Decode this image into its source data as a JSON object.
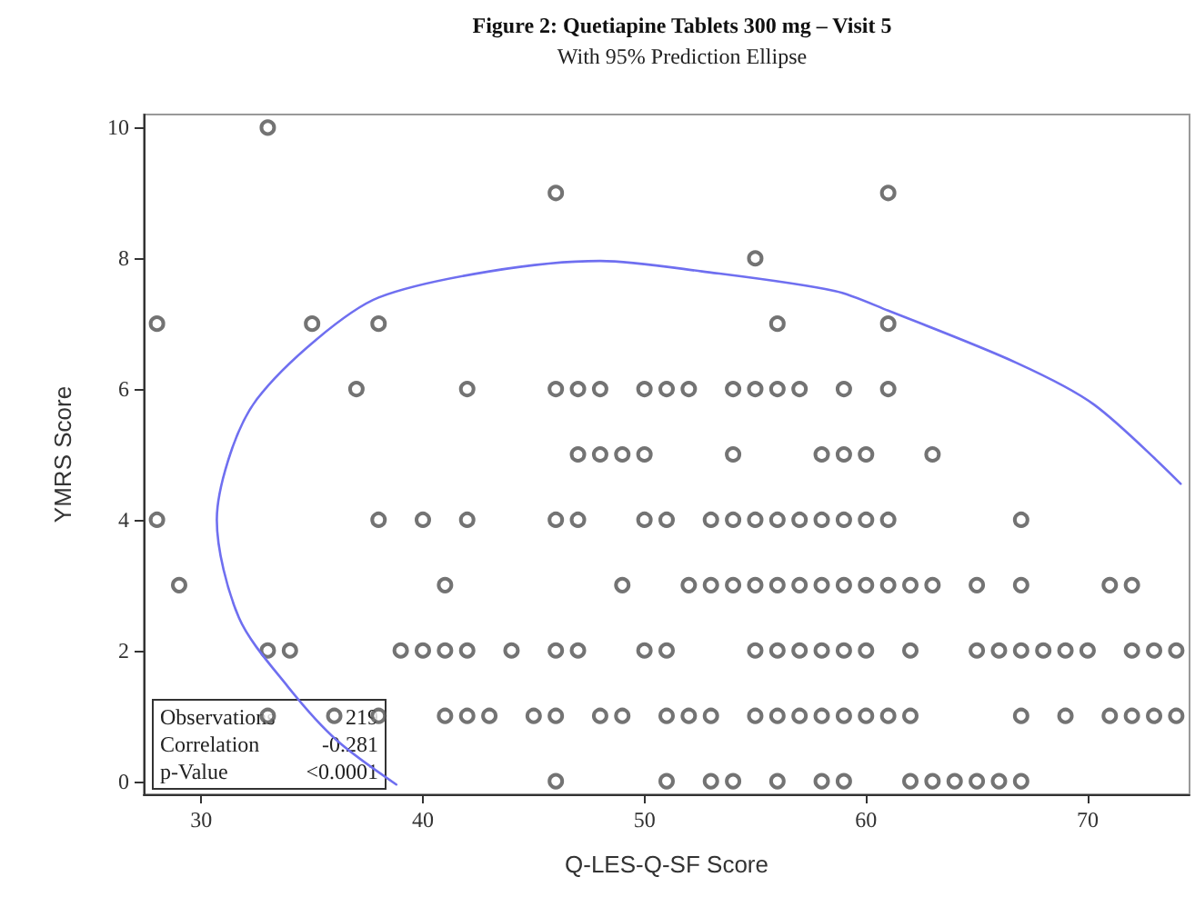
{
  "chart_data": {
    "type": "scatter",
    "title": "Figure 2: Quetiapine Tablets 300 mg – Visit 5",
    "subtitle": "With 95% Prediction Ellipse",
    "xlabel": "Q-LES-Q-SF Score",
    "ylabel": "YMRS Score",
    "xlim": [
      27.4,
      74.6
    ],
    "ylim": [
      -0.2,
      10.2
    ],
    "xticks": [
      30,
      40,
      50,
      60,
      70
    ],
    "yticks": [
      0,
      2,
      4,
      6,
      8,
      10
    ],
    "grid": false,
    "marker": "circle",
    "annotations": [
      "Observations",
      "219",
      "Correlation",
      "-0.281",
      "p-Value",
      "<0.0001"
    ],
    "series": [
      {
        "type": "scatter",
        "color": "#505050",
        "x": [
          33,
          46,
          61,
          55,
          28,
          35,
          38,
          56,
          61,
          37,
          42,
          46,
          47,
          48,
          50,
          51,
          52,
          54,
          55,
          56,
          57,
          59,
          61,
          47,
          48,
          49,
          50,
          54,
          58,
          59,
          60,
          63,
          28,
          38,
          40,
          42,
          46,
          47,
          50,
          51,
          53,
          54,
          55,
          56,
          57,
          58,
          59,
          60,
          61,
          67,
          29,
          41,
          49,
          52,
          53,
          54,
          55,
          56,
          57,
          58,
          59,
          60,
          61,
          62,
          63,
          65,
          67,
          71,
          72,
          33,
          34,
          39,
          40,
          41,
          42,
          44,
          46,
          47,
          50,
          51,
          55,
          56,
          57,
          58,
          59,
          60,
          62,
          65,
          66,
          67,
          68,
          69,
          70,
          72,
          73,
          74,
          33,
          36,
          38,
          41,
          42,
          43,
          45,
          46,
          48,
          49,
          51,
          52,
          53,
          55,
          56,
          57,
          58,
          59,
          60,
          61,
          62,
          67,
          69,
          71,
          72,
          73,
          74,
          46,
          51,
          53,
          54,
          56,
          58,
          59,
          62,
          63,
          64,
          65,
          66,
          67
        ],
        "values": [
          10,
          9,
          9,
          8,
          7,
          7,
          7,
          7,
          7,
          6,
          6,
          6,
          6,
          6,
          6,
          6,
          6,
          6,
          6,
          6,
          6,
          6,
          6,
          5,
          5,
          5,
          5,
          5,
          5,
          5,
          5,
          5,
          4,
          4,
          4,
          4,
          4,
          4,
          4,
          4,
          4,
          4,
          4,
          4,
          4,
          4,
          4,
          4,
          4,
          4,
          3,
          3,
          3,
          3,
          3,
          3,
          3,
          3,
          3,
          3,
          3,
          3,
          3,
          3,
          3,
          3,
          3,
          3,
          3,
          2,
          2,
          2,
          2,
          2,
          2,
          2,
          2,
          2,
          2,
          2,
          2,
          2,
          2,
          2,
          2,
          2,
          2,
          2,
          2,
          2,
          2,
          2,
          2,
          2,
          2,
          2,
          1,
          1,
          1,
          1,
          1,
          1,
          1,
          1,
          1,
          1,
          1,
          1,
          1,
          1,
          1,
          1,
          1,
          1,
          1,
          1,
          1,
          1,
          1,
          1,
          1,
          1,
          1,
          0,
          0,
          0,
          0,
          0,
          0,
          0,
          0,
          0,
          0,
          0,
          0,
          0
        ]
      },
      {
        "type": "line",
        "color": "#6f6ff0",
        "marker": "none",
        "x": [
          38.8,
          36.1,
          33.9,
          31.7,
          30.7,
          31.3,
          32.5,
          35.2,
          38,
          43,
          48,
          52.6,
          58.6,
          61,
          66.8,
          70.3,
          74.2
        ],
        "values": [
          -0.05,
          0.63,
          1.45,
          2.5,
          4,
          5,
          5.84,
          6.76,
          7.4,
          7.8,
          7.96,
          7.8,
          7.5,
          7.2,
          6.4,
          5.76,
          4.55
        ]
      }
    ]
  }
}
